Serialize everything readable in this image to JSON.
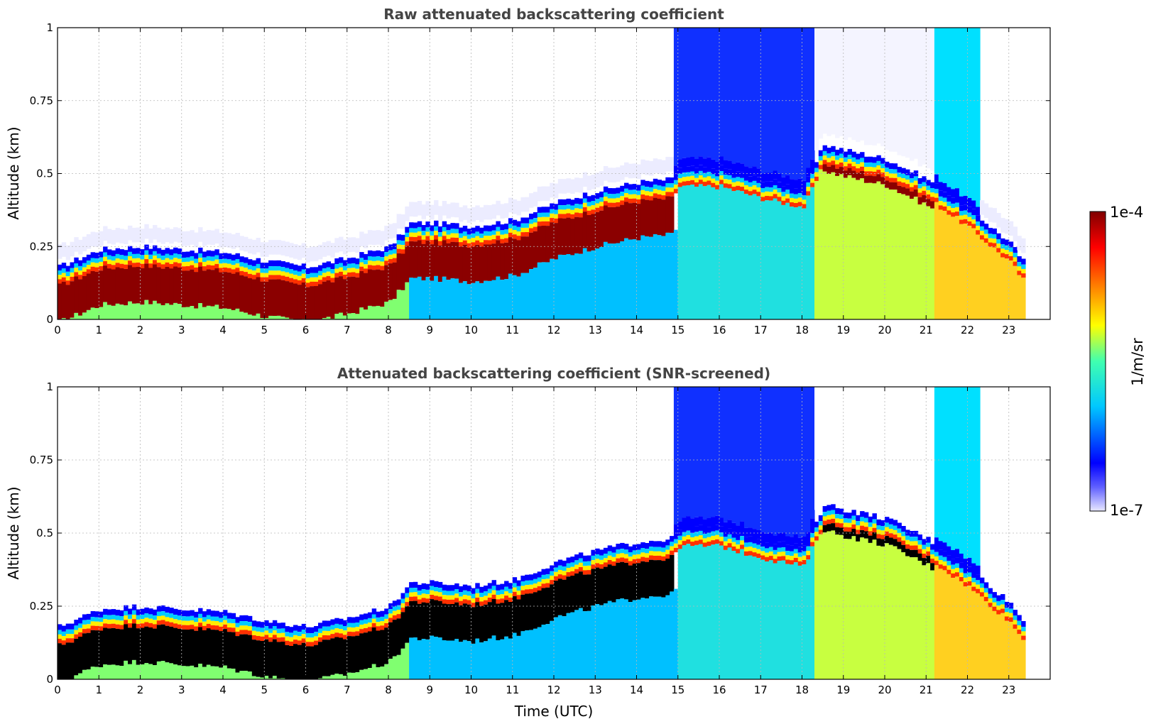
{
  "chart_data": [
    {
      "type": "heatmap",
      "title": "Raw attenuated backscattering coefficient",
      "xlabel": "",
      "ylabel": "Altitude (km)",
      "xlim": [
        0,
        24
      ],
      "ylim": [
        0,
        1
      ],
      "x_ticks": [
        "0",
        "1",
        "2",
        "3",
        "4",
        "5",
        "6",
        "7",
        "8",
        "9",
        "10",
        "11",
        "12",
        "13",
        "14",
        "15",
        "16",
        "17",
        "18",
        "19",
        "20",
        "21",
        "22",
        "23"
      ],
      "y_ticks": [
        "0",
        "0.25",
        "0.5",
        "0.75",
        "1"
      ],
      "grid": true,
      "data_end_hour": 23.4,
      "layer_top_km": {
        "time_utc": [
          0,
          1,
          2,
          3,
          4,
          5,
          6,
          7,
          8,
          8.5,
          9,
          10,
          11,
          12,
          13,
          14,
          14.8,
          15,
          16,
          17,
          18,
          18.5,
          19,
          20,
          21,
          22,
          23,
          23.4
        ],
        "altitude": [
          0.18,
          0.24,
          0.25,
          0.24,
          0.23,
          0.2,
          0.18,
          0.21,
          0.25,
          0.33,
          0.33,
          0.32,
          0.34,
          0.4,
          0.44,
          0.47,
          0.48,
          0.52,
          0.52,
          0.48,
          0.45,
          0.6,
          0.58,
          0.55,
          0.48,
          0.38,
          0.26,
          0.18
        ]
      }
    },
    {
      "type": "heatmap",
      "title": "Attenuated backscattering coefficient (SNR-screened)",
      "xlabel": "Time (UTC)",
      "ylabel": "Altitude (km)",
      "xlim": [
        0,
        24
      ],
      "ylim": [
        0,
        1
      ],
      "x_ticks": [
        "0",
        "1",
        "2",
        "3",
        "4",
        "5",
        "6",
        "7",
        "8",
        "9",
        "10",
        "11",
        "12",
        "13",
        "14",
        "15",
        "16",
        "17",
        "18",
        "19",
        "20",
        "21",
        "22",
        "23"
      ],
      "y_ticks": [
        "0",
        "0.25",
        "0.5",
        "0.75",
        "1"
      ],
      "grid": true,
      "data_end_hour": 23.4,
      "saturated_color": "#000000"
    }
  ],
  "colorbar": {
    "label": "1/m/sr",
    "max_label": "1e-4",
    "min_label": "1e-7",
    "colormap": "jet-with-light-low-end",
    "colors": [
      "#e8e8ff",
      "#0000ff",
      "#00c8ff",
      "#40ffb0",
      "#ffff00",
      "#ff8000",
      "#ff0000",
      "#800000"
    ]
  }
}
